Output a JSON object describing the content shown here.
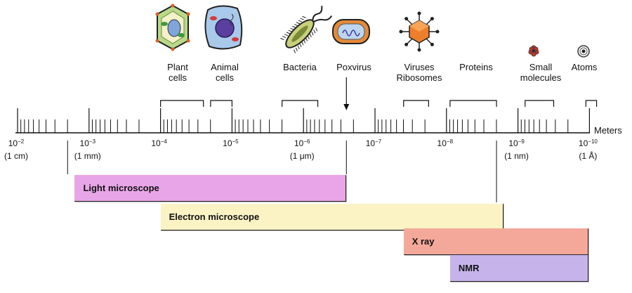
{
  "axis": {
    "unit_label": "Meters",
    "exponent_labels": [
      {
        "base": "10",
        "exp": "−2",
        "unit": "(1 cm)"
      },
      {
        "base": "10",
        "exp": "−3",
        "unit": "(1 mm)"
      },
      {
        "base": "10",
        "exp": "−4",
        "unit": ""
      },
      {
        "base": "10",
        "exp": "−5",
        "unit": ""
      },
      {
        "base": "10",
        "exp": "−6",
        "unit": "(1 μm)"
      },
      {
        "base": "10",
        "exp": "−7",
        "unit": ""
      },
      {
        "base": "10",
        "exp": "−8",
        "unit": ""
      },
      {
        "base": "10",
        "exp": "−9",
        "unit": "(1 nm)"
      },
      {
        "base": "10",
        "exp": "−10",
        "unit": "(1 Å)"
      }
    ]
  },
  "objects": [
    {
      "name": "plant-cells",
      "label": "Plant\ncells",
      "icon": "plant-cell-icon",
      "range_decades": [
        -4.0,
        -4.6
      ]
    },
    {
      "name": "animal-cells",
      "label": "Animal\ncells",
      "icon": "animal-cell-icon",
      "range_decades": [
        -4.7,
        -5.0
      ]
    },
    {
      "name": "bacteria",
      "label": "Bacteria",
      "icon": "bacterium-icon",
      "range_decades": [
        -5.7,
        -6.2
      ]
    },
    {
      "name": "poxvirus",
      "label": "Poxvirus",
      "icon": "poxvirus-icon",
      "range_decades": [
        -6.6,
        -6.6
      ]
    },
    {
      "name": "viruses-ribosomes",
      "label": "Viruses\nRibosomes",
      "icon": "virus-icon",
      "range_decades": [
        -7.4,
        -7.75
      ]
    },
    {
      "name": "proteins",
      "label": "Proteins",
      "icon": "",
      "range_decades": [
        -8.05,
        -8.7
      ]
    },
    {
      "name": "small-molecules",
      "label": "Small\nmolecules",
      "icon": "molecule-icon",
      "range_decades": [
        -9.1,
        -9.5
      ]
    },
    {
      "name": "atoms",
      "label": "Atoms",
      "icon": "atom-icon",
      "range_decades": [
        -9.95,
        -10.1
      ]
    }
  ],
  "techniques": [
    {
      "name": "light-microscope",
      "label": "Light microscope",
      "range_decades": [
        -2.8,
        -6.6
      ],
      "color": "#e8a6e8"
    },
    {
      "name": "electron-microscope",
      "label": "Electron microscope",
      "range_decades": [
        -4.0,
        -8.8
      ],
      "color": "#fbf3c4"
    },
    {
      "name": "x-ray",
      "label": "X ray",
      "range_decades": [
        -7.4,
        -10.4
      ],
      "color": "#f4a89a"
    },
    {
      "name": "nmr",
      "label": "NMR",
      "range_decades": [
        -8.05,
        -10.4
      ],
      "color": "#c6b3ea"
    }
  ]
}
